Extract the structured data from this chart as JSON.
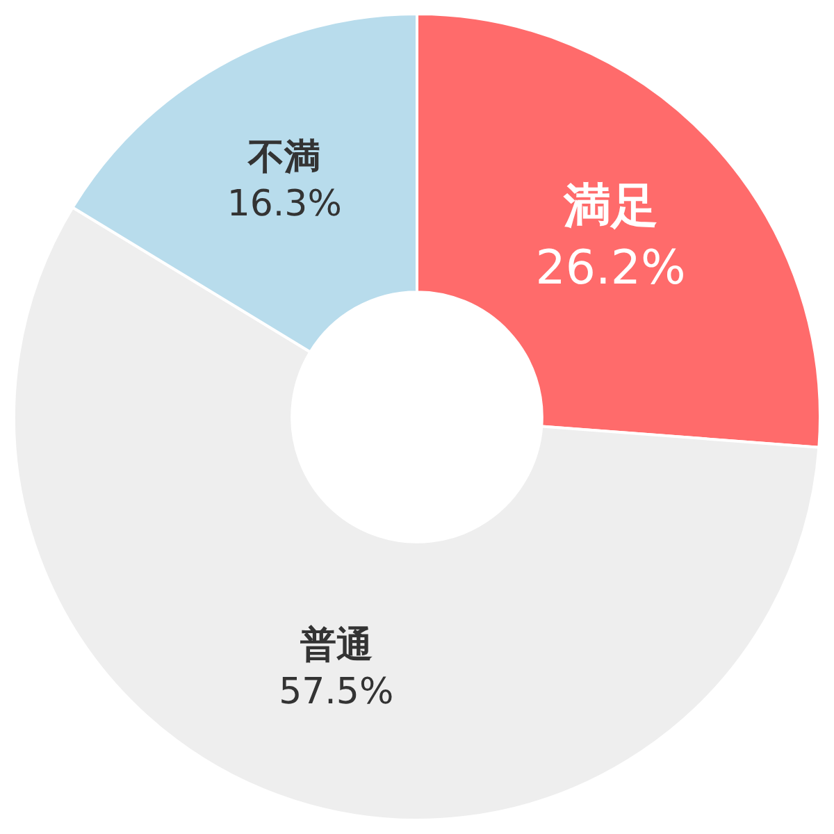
{
  "chart_data": {
    "type": "donut",
    "categories": [
      "満足",
      "普通",
      "不満"
    ],
    "values": [
      26.2,
      57.5,
      16.3
    ],
    "value_labels": [
      "26.2%",
      "57.5%",
      "16.3%"
    ],
    "colors": [
      "#ff6b6b",
      "#eeeeee",
      "#b8dcec"
    ],
    "legend": false
  }
}
